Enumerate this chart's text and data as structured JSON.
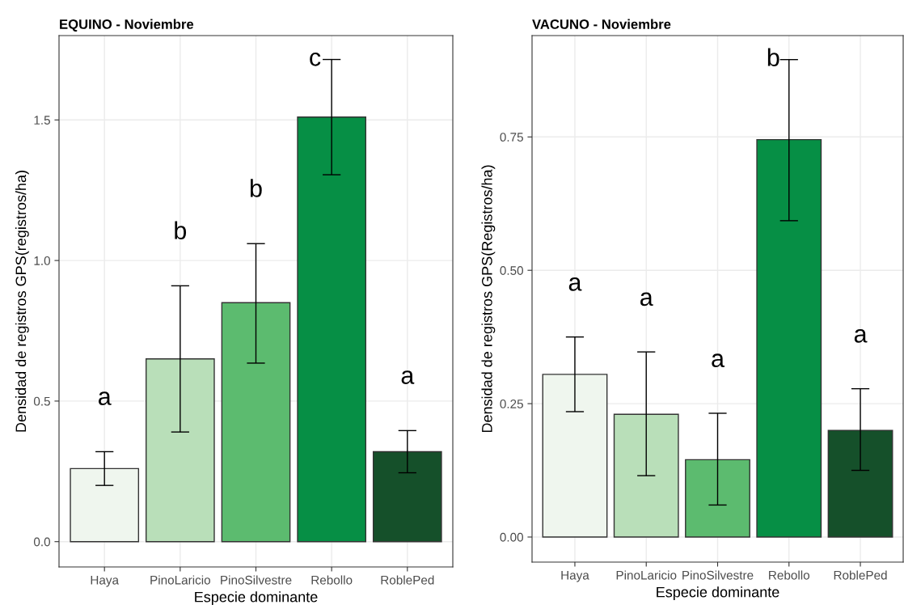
{
  "chart_data": [
    {
      "type": "bar",
      "title": "EQUINO - Noviembre",
      "xlabel": "Especie dominante",
      "ylabel": "Densidad de registros GPS(registros/ha)",
      "categories": [
        "Haya",
        "PinoLaricio",
        "PinoSilvestre",
        "Rebollo",
        "RoblePed"
      ],
      "values": [
        0.26,
        0.65,
        0.85,
        1.51,
        0.32
      ],
      "colors": [
        "#eff6ee",
        "#b9dfb9",
        "#5cbb6f",
        "#068f45",
        "#15502a"
      ],
      "errors": [
        [
          0.2,
          0.32
        ],
        [
          0.39,
          0.91
        ],
        [
          0.635,
          1.06
        ],
        [
          1.305,
          1.715
        ],
        [
          0.245,
          0.395
        ]
      ],
      "ylim": [
        -0.09,
        1.8
      ],
      "yticks": [
        {
          "value": 0,
          "label": "0.0"
        },
        0.5,
        {
          "value": 1,
          "label": "1.0"
        },
        1.5
      ],
      "grid": true,
      "annotations": [
        "a",
        "b",
        "b",
        "c",
        "a"
      ]
    },
    {
      "type": "bar",
      "title": "VACUNO - Noviembre",
      "xlabel": "Especie dominante",
      "ylabel": "Densidad de registros GPS(Registros/ha)",
      "categories": [
        "Haya",
        "PinoLaricio",
        "PinoSilvestre",
        "Rebollo",
        "RoblePed"
      ],
      "values": [
        0.305,
        0.23,
        0.145,
        0.745,
        0.2
      ],
      "colors": [
        "#eff6ee",
        "#b9dfb9",
        "#5cbb6f",
        "#068f45",
        "#15502a"
      ],
      "errors": [
        [
          0.235,
          0.375
        ],
        [
          0.115,
          0.347
        ],
        [
          0.06,
          0.232
        ],
        [
          0.593,
          0.895
        ],
        [
          0.125,
          0.278
        ]
      ],
      "ylim": [
        -0.047,
        0.94
      ],
      "yticks": [
        {
          "value": 0,
          "label": "0.00"
        },
        0.25,
        {
          "value": 0.5,
          "label": "0.50"
        },
        0.75
      ],
      "grid": true,
      "annotations": [
        "a",
        "a",
        "a",
        "b",
        "a"
      ]
    }
  ]
}
